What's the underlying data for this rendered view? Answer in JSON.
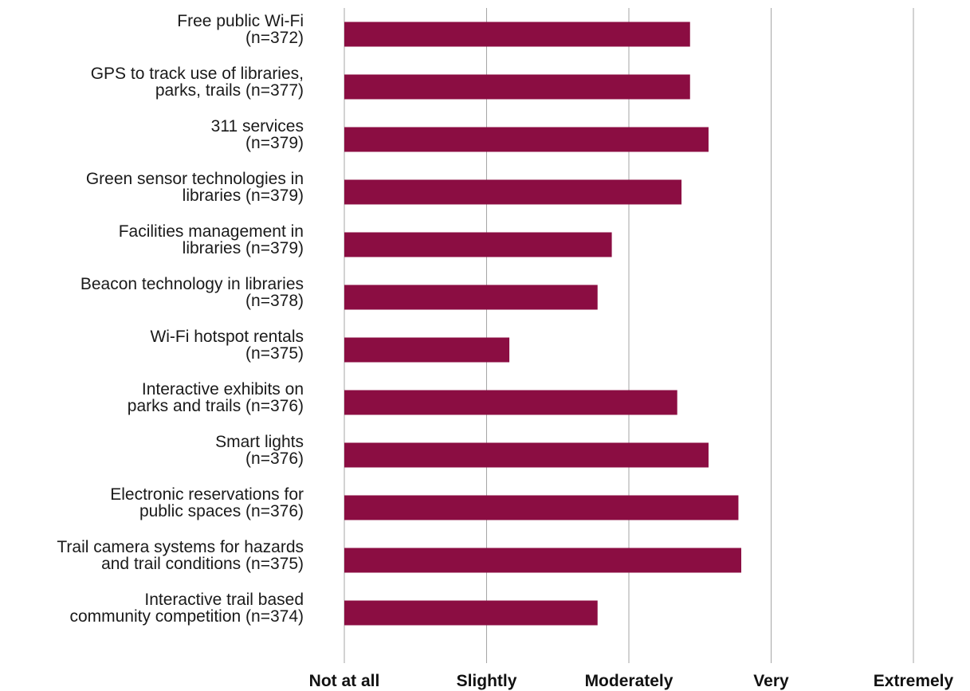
{
  "chart_data": {
    "type": "bar",
    "orientation": "horizontal",
    "title": "",
    "xlabel": "",
    "ylabel": "",
    "xlim": [
      1,
      5
    ],
    "x_tick_values": [
      1,
      2,
      3,
      4,
      5
    ],
    "x_tick_labels": [
      "Not at all",
      "Slightly",
      "Moderately",
      "Very",
      "Extremely"
    ],
    "grid": true,
    "categories": [
      [
        "Free public Wi-Fi",
        "(n=372)"
      ],
      [
        "GPS to track use of libraries,",
        "parks, trails (n=377)"
      ],
      [
        "311 services",
        "(n=379)"
      ],
      [
        "Green sensor technologies in",
        "libraries (n=379)"
      ],
      [
        "Facilities management in",
        "libraries (n=379)"
      ],
      [
        "Beacon technology in libraries",
        "(n=378)"
      ],
      [
        "Wi-Fi hotspot rentals",
        "(n=375)"
      ],
      [
        "Interactive exhibits on",
        "parks and trails (n=376)"
      ],
      [
        "Smart lights",
        "(n=376)"
      ],
      [
        "Electronic reservations for",
        "public spaces (n=376)"
      ],
      [
        "Trail camera systems for hazards",
        "and trail conditions (n=375)"
      ],
      [
        "Interactive trail based",
        "community competition (n=374)"
      ]
    ],
    "values": [
      3.43,
      3.43,
      3.56,
      3.37,
      2.88,
      2.78,
      2.16,
      3.34,
      3.56,
      3.77,
      3.79,
      2.78
    ],
    "bar_color": "#8b0d42",
    "grid_color": "#a6a6a6"
  }
}
